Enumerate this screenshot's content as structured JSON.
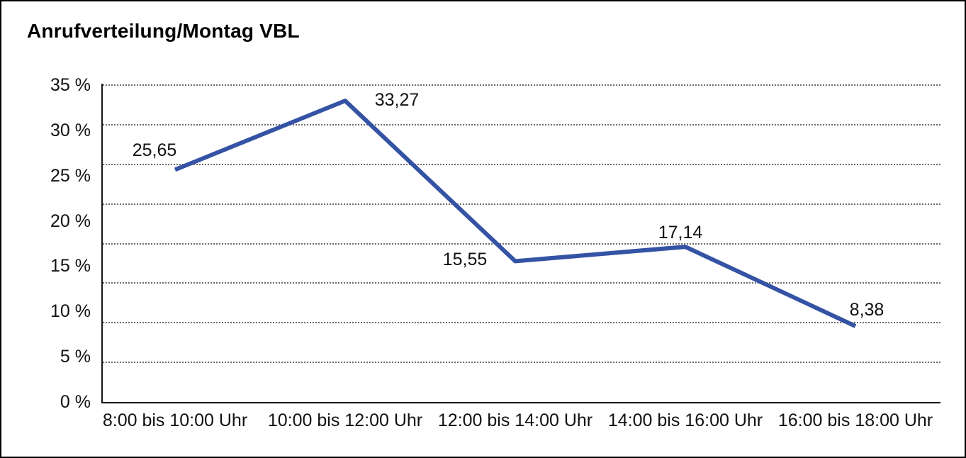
{
  "window": {
    "background": "#ffffff",
    "frame_border_color": "#000000"
  },
  "chart_data": {
    "type": "line",
    "title": "Anrufverteilung/Montag VBL",
    "categories": [
      "8:00 bis 10:00 Uhr",
      "10:00 bis 12:00 Uhr",
      "12:00 bis 14:00 Uhr",
      "14:00 bis 16:00 Uhr",
      "16:00 bis 18:00 Uhr"
    ],
    "values": [
      25.65,
      33.27,
      15.55,
      17.14,
      8.38
    ],
    "value_labels": [
      "25,65",
      "33,27",
      "15,55",
      "17,14",
      "8,38"
    ],
    "y_tick_labels": [
      "35 %",
      "30 %",
      "25 %",
      "20 %",
      "15 %",
      "10 %",
      "5 %",
      "0 %"
    ],
    "ylim": [
      0,
      35
    ],
    "xlabel": "",
    "ylabel": "",
    "legend": "none",
    "grid": "horizontal-dotted",
    "grid_intervals": 8,
    "line_color": "#3553A4",
    "axis_color": "#161616",
    "gridline_color": "#6b6b6b",
    "text_color": "#111111"
  }
}
